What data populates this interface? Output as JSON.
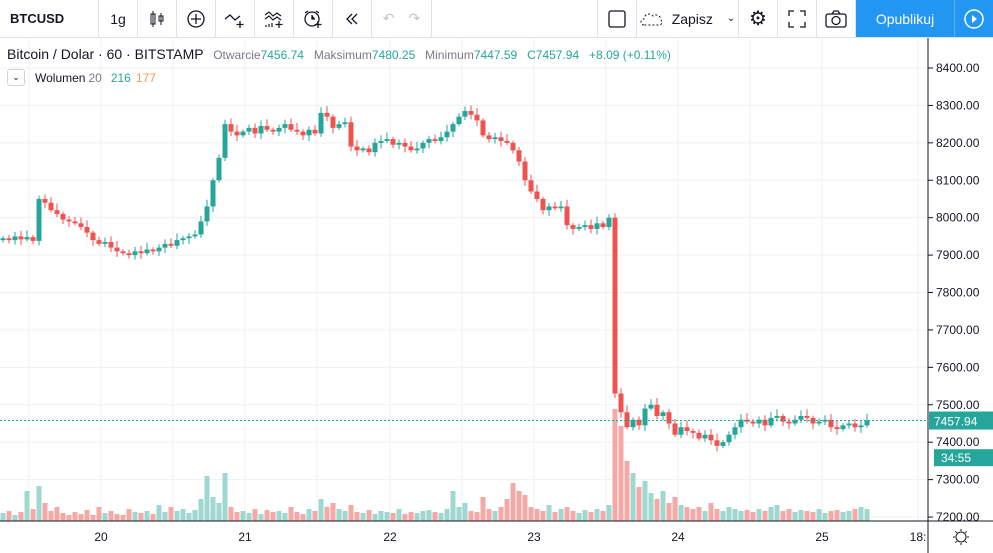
{
  "toolbar": {
    "symbol": "BTCUSD",
    "interval": "1g",
    "save_label": "Zapisz",
    "publish_label": "Opublikuj"
  },
  "legend": {
    "title": "Bitcoin / Dolar · 60 · BITSTAMP",
    "open_label": "Otwarcie",
    "open": "7456.74",
    "high_label": "Maksimum",
    "high": "7480.25",
    "low_label": "Minimum",
    "low": "7447.59",
    "close_label": "C",
    "close": "7457.94",
    "change": "+8.09 (+0.11%)"
  },
  "volume_legend": {
    "label": "Wolumen",
    "length": "20",
    "value": "216",
    "ma": "177"
  },
  "price_axis": {
    "labels": [
      "8400.00",
      "8300.00",
      "8200.00",
      "8100.00",
      "8000.00",
      "7900.00",
      "7800.00",
      "7700.00",
      "7600.00",
      "7500.00",
      "7400.00",
      "7300.00",
      "7200.00"
    ],
    "last_price": "7457.94",
    "countdown": "34:55"
  },
  "time_axis": {
    "labels": [
      "20",
      "21",
      "22",
      "23",
      "24",
      "25",
      "18:"
    ]
  },
  "colors": {
    "up": "#26a69a",
    "down": "#ef5350",
    "accent": "#2196f3"
  },
  "chart_data": {
    "type": "candlestick",
    "ylim": [
      7200,
      8400
    ],
    "interval": "60",
    "first_open": 7940,
    "close": [
      7945,
      7940,
      7950,
      7942,
      7948,
      7938,
      8050,
      8040,
      8020,
      8010,
      7995,
      7990,
      7985,
      7975,
      7960,
      7940,
      7930,
      7935,
      7920,
      7910,
      7905,
      7900,
      7910,
      7905,
      7915,
      7910,
      7920,
      7930,
      7925,
      7940,
      7945,
      7950,
      7955,
      7990,
      8030,
      8100,
      8160,
      8250,
      8230,
      8220,
      8230,
      8240,
      8225,
      8245,
      8235,
      8230,
      8240,
      8250,
      8235,
      8230,
      8220,
      8235,
      8225,
      8280,
      8270,
      8240,
      8250,
      8255,
      8190,
      8180,
      8185,
      8175,
      8200,
      8205,
      8210,
      8195,
      8200,
      8190,
      8180,
      8185,
      8200,
      8210,
      8205,
      8215,
      8230,
      8250,
      8270,
      8285,
      8275,
      8260,
      8220,
      8210,
      8215,
      8205,
      8200,
      8180,
      8150,
      8100,
      8070,
      8050,
      8020,
      8030,
      8025,
      8030,
      7980,
      7970,
      7975,
      7980,
      7970,
      7985,
      7975,
      8000,
      7530,
      7480,
      7440,
      7460,
      7445,
      7490,
      7500,
      7470,
      7480,
      7450,
      7420,
      7440,
      7430,
      7425,
      7410,
      7420,
      7405,
      7390,
      7400,
      7420,
      7440,
      7460,
      7455,
      7450,
      7460,
      7445,
      7465,
      7470,
      7455,
      7450,
      7460,
      7470,
      7465,
      7450,
      7455,
      7460,
      7440,
      7435,
      7445,
      7450,
      7440,
      7445,
      7458
    ],
    "volume": [
      8,
      10,
      6,
      9,
      30,
      12,
      35,
      18,
      10,
      14,
      8,
      6,
      9,
      7,
      11,
      6,
      14,
      8,
      10,
      7,
      6,
      12,
      9,
      8,
      10,
      7,
      16,
      9,
      14,
      10,
      12,
      8,
      11,
      22,
      45,
      24,
      18,
      48,
      14,
      9,
      10,
      8,
      12,
      7,
      11,
      9,
      10,
      8,
      14,
      9,
      7,
      12,
      10,
      22,
      14,
      18,
      12,
      10,
      16,
      9,
      8,
      11,
      7,
      10,
      9,
      8,
      12,
      7,
      9,
      8,
      10,
      11,
      9,
      8,
      12,
      30,
      14,
      18,
      10,
      9,
      24,
      12,
      10,
      14,
      22,
      38,
      30,
      26,
      14,
      12,
      10,
      16,
      9,
      12,
      14,
      10,
      8,
      11,
      9,
      12,
      10,
      16,
      112,
      95,
      60,
      48,
      34,
      40,
      28,
      22,
      30,
      18,
      24,
      16,
      14,
      12,
      14,
      10,
      18,
      12,
      10,
      14,
      12,
      10,
      11,
      9,
      12,
      10,
      14,
      16,
      10,
      12,
      9,
      11,
      10,
      9,
      12,
      8,
      10,
      11,
      9,
      10,
      12,
      14,
      12
    ]
  }
}
